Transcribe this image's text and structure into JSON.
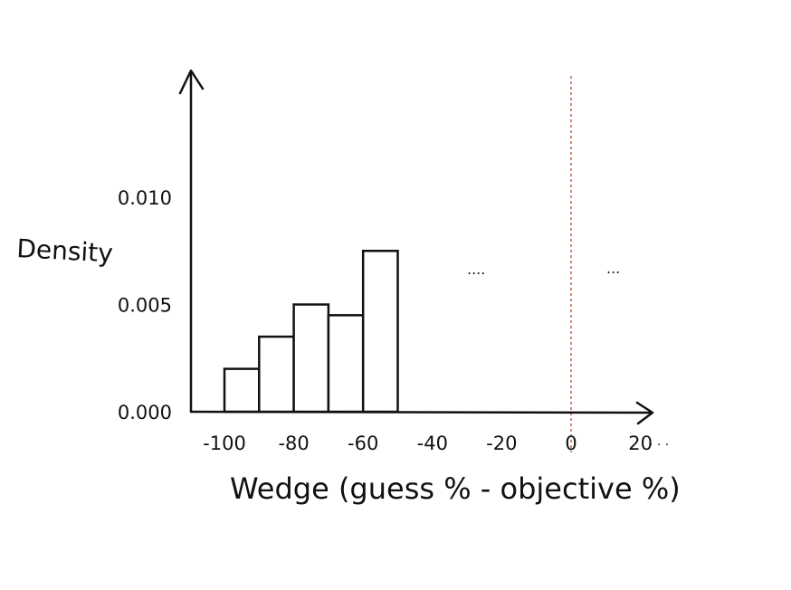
{
  "chart_data": {
    "type": "bar",
    "title": "",
    "xlabel": "Wedge (guess % - objective %)",
    "ylabel": "Density",
    "x_ticks": [
      "-100",
      "-80",
      "-60",
      "-40",
      "-20",
      "0",
      "20"
    ],
    "y_ticks": [
      "0.000",
      "0.005",
      "0.010"
    ],
    "xlim": [
      -110,
      25
    ],
    "ylim": [
      0,
      0.016
    ],
    "bin_edges": [
      -100,
      -90,
      -80,
      -70,
      -60,
      -50
    ],
    "values": [
      0.002,
      0.0035,
      0.005,
      0.0045,
      0.0075
    ],
    "reference_line": {
      "x": 0,
      "style": "dotted",
      "color": "#c0715a"
    },
    "continuation_marks": [
      "....",
      "...",
      ". . ."
    ],
    "bar_fill": "#ffffff",
    "stroke_color": "#111111",
    "grid": false,
    "legend": "none"
  }
}
